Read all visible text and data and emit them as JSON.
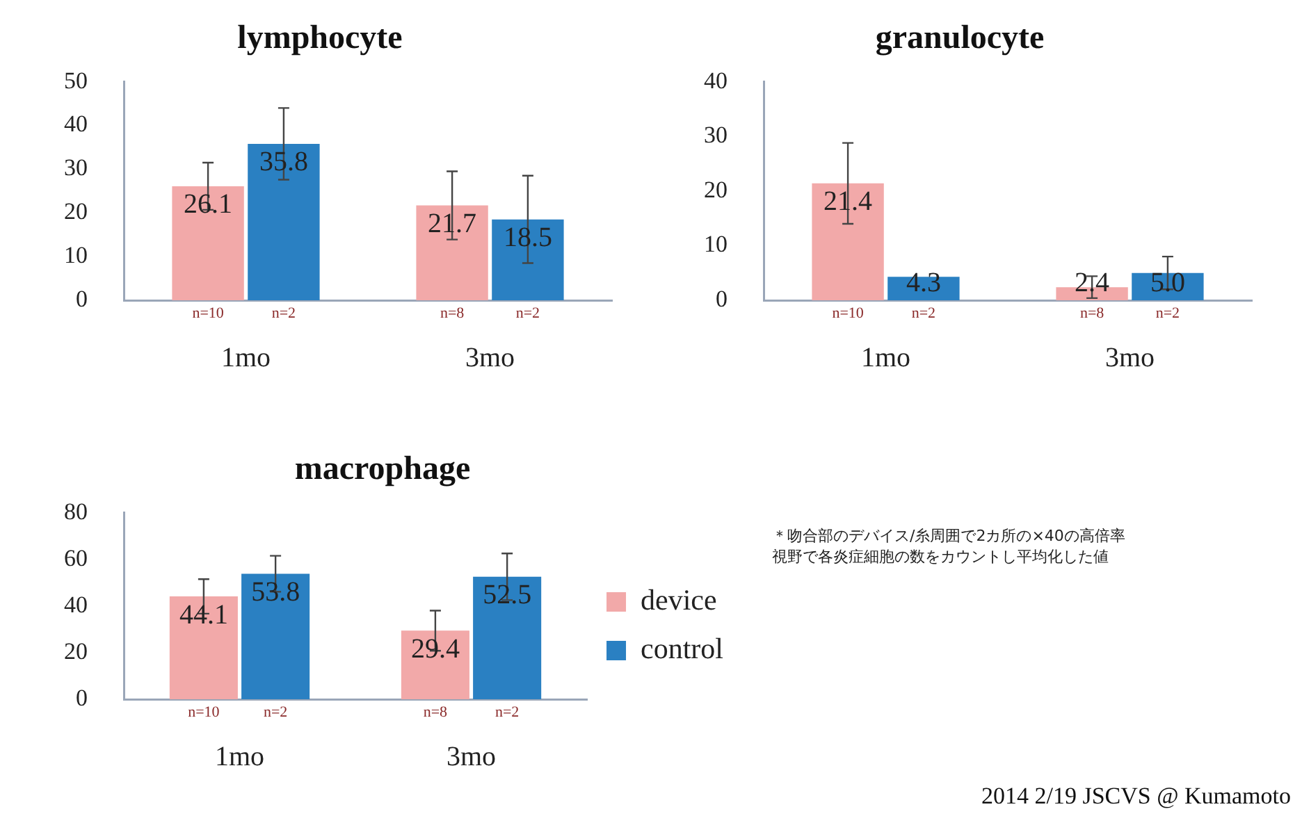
{
  "chart_data": [
    {
      "type": "bar",
      "title": "lymphocyte",
      "categories": [
        "1mo",
        "3mo"
      ],
      "series": [
        {
          "color": "#f2a9a9",
          "values": [
            26.1,
            21.7
          ],
          "errors": [
            5.4,
            7.8
          ],
          "value_labels": [
            "26.1",
            "21.7"
          ]
        },
        {
          "color": "#2a80c2",
          "values": [
            35.8,
            18.5
          ],
          "errors": [
            8.2,
            10
          ],
          "value_labels": [
            "35.8",
            "18.5"
          ]
        }
      ],
      "ylim": [
        0,
        50
      ],
      "yticks": [
        0,
        10,
        20,
        30,
        40,
        50
      ],
      "grid": false,
      "legend": false,
      "annotations": [
        {
          "text": "n=10",
          "x": "1mo",
          "y": 0
        },
        {
          "text": "n=2",
          "x": "1mo",
          "y": 0
        },
        {
          "text": "n=8",
          "x": "3mo",
          "y": 0
        },
        {
          "text": "n=2",
          "x": "3mo",
          "y": 0
        }
      ]
    },
    {
      "type": "bar",
      "title": "granulocyte",
      "categories": [
        "1mo",
        "3mo"
      ],
      "series": [
        {
          "color": "#f2a9a9",
          "values": [
            21.4,
            2.4
          ],
          "errors": [
            7.4,
            2
          ],
          "value_labels": [
            "21.4",
            "2.4"
          ]
        },
        {
          "color": "#2a80c2",
          "values": [
            4.3,
            5.0
          ],
          "errors": [
            null,
            3
          ],
          "value_labels": [
            "4.3",
            "5.0"
          ]
        }
      ],
      "ylim": [
        0,
        40
      ],
      "yticks": [
        0,
        10,
        20,
        30,
        40
      ],
      "grid": false,
      "legend": false,
      "annotations": [
        {
          "text": "n=10",
          "x": "1mo",
          "y": 0
        },
        {
          "text": "n=2",
          "x": "1mo",
          "y": 0
        },
        {
          "text": "n=8",
          "x": "3mo",
          "y": 0
        },
        {
          "text": "n=2",
          "x": "3mo",
          "y": 0
        }
      ]
    },
    {
      "type": "bar",
      "title": "macrophage",
      "categories": [
        "1mo",
        "3mo"
      ],
      "series": [
        {
          "name": "device",
          "color": "#f2a9a9",
          "values": [
            44.1,
            29.4
          ],
          "errors": [
            7.4,
            8.6
          ],
          "value_labels": [
            "44.1",
            "29.4"
          ]
        },
        {
          "name": "control",
          "color": "#2a80c2",
          "values": [
            53.8,
            52.5
          ],
          "errors": [
            7.7,
            10
          ],
          "value_labels": [
            "53.8",
            "52.5"
          ]
        }
      ],
      "ylim": [
        0,
        80
      ],
      "yticks": [
        0,
        20,
        40,
        60,
        80
      ],
      "grid": false,
      "legend": "right",
      "annotations": [
        {
          "text": "n=10",
          "x": "1mo",
          "y": 0
        },
        {
          "text": "n=2",
          "x": "1mo",
          "y": 0
        },
        {
          "text": "n=8",
          "x": "3mo",
          "y": 0
        },
        {
          "text": "n=2",
          "x": "3mo",
          "y": 0
        },
        "＊吻合部のデバイス/糸周囲で2カ所の×40の高倍率視野で各炎症細胞の数をカウントし平均化した値",
        "2014 2/19 JSCVS @ Kumamoto"
      ]
    }
  ]
}
